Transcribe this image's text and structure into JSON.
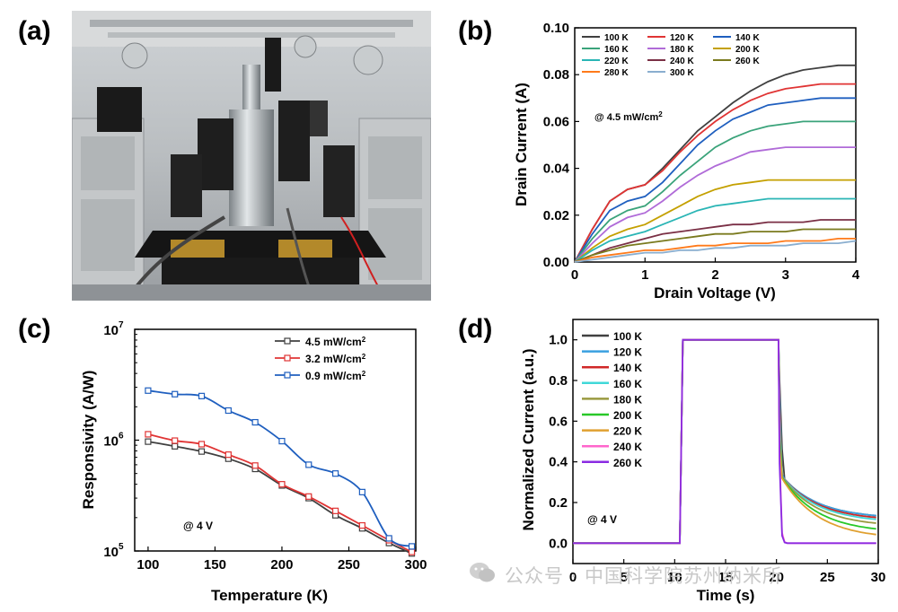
{
  "panels": {
    "a": "(a)",
    "b": "(b)",
    "c": "(c)",
    "d": "(d)"
  },
  "watermark": "公众号 · 中国科学院苏州纳米所",
  "chart_data": [
    {
      "id": "b",
      "type": "line",
      "xlabel": "Drain Voltage (V)",
      "ylabel": "Drain Current (A)",
      "xlim": [
        0,
        4
      ],
      "ylim": [
        0,
        0.1
      ],
      "xticks": [
        "0",
        "1",
        "2",
        "3",
        "4"
      ],
      "yticks": [
        "0.00",
        "0.02",
        "0.04",
        "0.06",
        "0.08",
        "0.10"
      ],
      "annotation": "@ 4.5 mW/cm",
      "annotation_sup": "2",
      "legend_placement": "top-left",
      "x": [
        0,
        0.25,
        0.5,
        0.75,
        1.0,
        1.25,
        1.5,
        1.75,
        2.0,
        2.25,
        2.5,
        2.75,
        3.0,
        3.25,
        3.5,
        3.75,
        4.0
      ],
      "series": [
        {
          "name": "100 K",
          "color": "#404040",
          "values": [
            0,
            0.014,
            0.026,
            0.031,
            0.033,
            0.04,
            0.048,
            0.056,
            0.062,
            0.068,
            0.073,
            0.077,
            0.08,
            0.082,
            0.083,
            0.084,
            0.084
          ]
        },
        {
          "name": "120 K",
          "color": "#e03434",
          "values": [
            0,
            0.014,
            0.026,
            0.031,
            0.033,
            0.039,
            0.047,
            0.054,
            0.06,
            0.065,
            0.069,
            0.072,
            0.074,
            0.075,
            0.076,
            0.076,
            0.076
          ]
        },
        {
          "name": "140 K",
          "color": "#1f5fbf",
          "values": [
            0,
            0.012,
            0.022,
            0.026,
            0.028,
            0.034,
            0.042,
            0.05,
            0.056,
            0.061,
            0.064,
            0.067,
            0.068,
            0.069,
            0.07,
            0.07,
            0.07
          ]
        },
        {
          "name": "160 K",
          "color": "#3aa37a",
          "values": [
            0,
            0.01,
            0.018,
            0.022,
            0.024,
            0.03,
            0.037,
            0.043,
            0.049,
            0.053,
            0.056,
            0.058,
            0.059,
            0.06,
            0.06,
            0.06,
            0.06
          ]
        },
        {
          "name": "180 K",
          "color": "#b06bd8",
          "values": [
            0,
            0.008,
            0.015,
            0.019,
            0.021,
            0.026,
            0.032,
            0.037,
            0.041,
            0.044,
            0.047,
            0.048,
            0.049,
            0.049,
            0.049,
            0.049,
            0.049
          ]
        },
        {
          "name": "200 K",
          "color": "#c4a000",
          "values": [
            0,
            0.006,
            0.011,
            0.014,
            0.016,
            0.02,
            0.024,
            0.028,
            0.031,
            0.033,
            0.034,
            0.035,
            0.035,
            0.035,
            0.035,
            0.035,
            0.035
          ]
        },
        {
          "name": "220 K",
          "color": "#2ab5b5",
          "values": [
            0,
            0.005,
            0.009,
            0.011,
            0.013,
            0.016,
            0.019,
            0.022,
            0.024,
            0.025,
            0.026,
            0.027,
            0.027,
            0.027,
            0.027,
            0.027,
            0.027
          ]
        },
        {
          "name": "240 K",
          "color": "#7a2f45",
          "values": [
            0,
            0.003,
            0.006,
            0.008,
            0.01,
            0.012,
            0.013,
            0.014,
            0.015,
            0.016,
            0.016,
            0.017,
            0.017,
            0.017,
            0.018,
            0.018,
            0.018
          ]
        },
        {
          "name": "260 K",
          "color": "#7a7a1e",
          "values": [
            0,
            0.003,
            0.005,
            0.007,
            0.008,
            0.009,
            0.01,
            0.011,
            0.012,
            0.012,
            0.013,
            0.013,
            0.013,
            0.014,
            0.014,
            0.014,
            0.014
          ]
        },
        {
          "name": "280 K",
          "color": "#ff7a1a",
          "values": [
            0,
            0.002,
            0.003,
            0.004,
            0.005,
            0.005,
            0.006,
            0.007,
            0.007,
            0.008,
            0.008,
            0.008,
            0.009,
            0.009,
            0.009,
            0.01,
            0.01
          ]
        },
        {
          "name": "300 K",
          "color": "#8aaecf",
          "values": [
            0,
            0.001,
            0.002,
            0.003,
            0.004,
            0.004,
            0.005,
            0.005,
            0.006,
            0.006,
            0.007,
            0.007,
            0.007,
            0.008,
            0.008,
            0.008,
            0.009
          ]
        }
      ]
    },
    {
      "id": "c",
      "type": "line",
      "xlabel": "Temperature (K)",
      "ylabel": "Responsivity (A/W)",
      "log_y": true,
      "xlim": [
        90,
        300
      ],
      "ylim": [
        100000,
        10000000
      ],
      "xticks": [
        "100",
        "150",
        "200",
        "250",
        "300"
      ],
      "yticks": [
        {
          "base": "10",
          "exp": "5"
        },
        {
          "base": "10",
          "exp": "6"
        },
        {
          "base": "10",
          "exp": "7"
        }
      ],
      "annotation": "@ 4 V",
      "legend_placement": "top-right",
      "x": [
        100,
        120,
        140,
        160,
        180,
        200,
        220,
        240,
        260,
        280,
        297
      ],
      "series": [
        {
          "name": "4.5 mW/cm",
          "sup": "2",
          "color": "#404040",
          "values": [
            970000,
            880000,
            790000,
            680000,
            550000,
            390000,
            300000,
            210000,
            160000,
            118000,
            95000
          ]
        },
        {
          "name": "3.2 mW/cm",
          "sup": "2",
          "color": "#e03434",
          "values": [
            1130000,
            990000,
            920000,
            740000,
            590000,
            400000,
            310000,
            230000,
            170000,
            125000,
            98000
          ]
        },
        {
          "name": "0.9 mW/cm",
          "sup": "2",
          "color": "#1f5fbf",
          "values": [
            2800000,
            2600000,
            2500000,
            1850000,
            1450000,
            980000,
            600000,
            500000,
            340000,
            130000,
            110000
          ]
        }
      ]
    },
    {
      "id": "d",
      "type": "line",
      "xlabel": "Time (s)",
      "ylabel": "Normalized Current (a.u.)",
      "xlim": [
        0,
        30
      ],
      "ylim": [
        -0.1,
        1.1
      ],
      "xticks": [
        "0",
        "5",
        "10",
        "15",
        "20",
        "25",
        "30"
      ],
      "yticks": [
        "0.0",
        "0.2",
        "0.4",
        "0.6",
        "0.8",
        "1.0"
      ],
      "annotation": "@ 4 V",
      "legend_placement": "top-left",
      "on_time": 10.5,
      "off_time": 20.2,
      "series": [
        {
          "name": "100 K",
          "color": "#404040",
          "tail_at_30": 0.12
        },
        {
          "name": "120 K",
          "color": "#3aa0e0",
          "tail_at_30": 0.12
        },
        {
          "name": "140 K",
          "color": "#d02828",
          "tail_at_30": 0.11
        },
        {
          "name": "160 K",
          "color": "#40d8d8",
          "tail_at_30": 0.1
        },
        {
          "name": "180 K",
          "color": "#9a9a40",
          "tail_at_30": 0.08
        },
        {
          "name": "200 K",
          "color": "#28c828",
          "tail_at_30": 0.05
        },
        {
          "name": "220 K",
          "color": "#e0a030",
          "tail_at_30": 0.02
        },
        {
          "name": "240 K",
          "color": "#ff66cc",
          "tail_at_30": 0.0
        },
        {
          "name": "260 K",
          "color": "#8a2be2",
          "tail_at_30": 0.0
        }
      ]
    }
  ]
}
